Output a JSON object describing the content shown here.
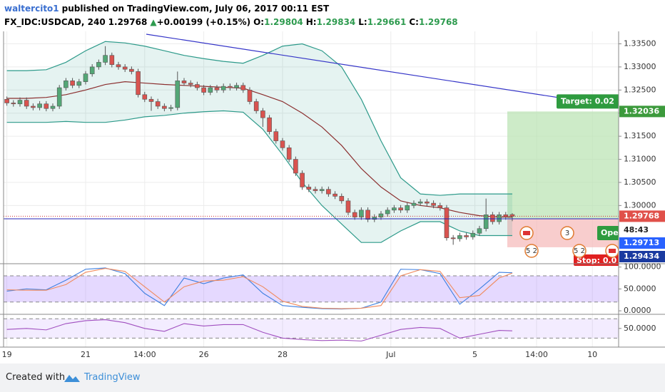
{
  "header": {
    "user": "waltercito1",
    "published": "published on TradingView.com, July 06, 2017 00:11 EST",
    "symbol": "FX_IDC:USDCAD, 240",
    "last": "1.29768",
    "arrow": "▲",
    "change": "+0.00199 (+0.15%)",
    "o_label": "O:",
    "o": "1.29804",
    "h_label": "H:",
    "h": "1.29834",
    "l_label": "L:",
    "l": "1.29661",
    "c_label": "C:",
    "c": "1.29768"
  },
  "chart_data": [
    {
      "type": "candlestick",
      "xlim": [
        -0.5,
        93.2
      ],
      "xticks": [
        {
          "value": 0,
          "label": "19"
        },
        {
          "value": 12,
          "label": "21"
        },
        {
          "value": 21,
          "label": "14:00"
        },
        {
          "value": 30,
          "label": "26"
        },
        {
          "value": 42,
          "label": "28"
        },
        {
          "value": 58.5,
          "label": "Jul"
        },
        {
          "value": 71.3,
          "label": "5"
        },
        {
          "value": 80.7,
          "label": "14:00"
        },
        {
          "value": 89.2,
          "label": "10"
        }
      ],
      "ylim": [
        1.2874,
        1.3377
      ],
      "yticks": [
        {
          "value": 1.335,
          "label": "1.33500"
        },
        {
          "value": 1.33,
          "label": "1.33000"
        },
        {
          "value": 1.325,
          "label": "1.32500"
        },
        {
          "value": 1.32,
          "label": "1.32000"
        },
        {
          "value": 1.315,
          "label": "1.31500"
        },
        {
          "value": 1.31,
          "label": "1.31000"
        },
        {
          "value": 1.305,
          "label": "1.30500"
        },
        {
          "value": 1.3,
          "label": "1.30000"
        }
      ],
      "grid": true,
      "up_color": "#53a776",
      "down_color": "#d9534f",
      "open": [
        1.323,
        1.3222,
        1.322,
        1.3228,
        1.3215,
        1.3212,
        1.322,
        1.321,
        1.3215,
        1.3255,
        1.327,
        1.326,
        1.3268,
        1.3285,
        1.33,
        1.331,
        1.3325,
        1.3305,
        1.33,
        1.3295,
        1.329,
        1.324,
        1.323,
        1.3225,
        1.3215,
        1.321,
        1.3212,
        1.327,
        1.3265,
        1.3262,
        1.3255,
        1.3245,
        1.3255,
        1.325,
        1.3258,
        1.3255,
        1.326,
        1.325,
        1.3225,
        1.3205,
        1.319,
        1.316,
        1.314,
        1.3125,
        1.31,
        1.307,
        1.304,
        1.3035,
        1.3032,
        1.3035,
        1.3025,
        1.302,
        1.301,
        1.2985,
        1.2975,
        1.299,
        1.297,
        1.2975,
        1.2982,
        1.299,
        1.2995,
        1.299,
        1.3,
        1.3005,
        1.3008,
        1.3005,
        1.3,
        1.2995,
        1.293,
        1.2928,
        1.2935,
        1.2932,
        1.294,
        1.295,
        1.298,
        1.2965,
        1.298,
        1.29804
      ],
      "high": [
        1.3236,
        1.3228,
        1.3234,
        1.3234,
        1.3221,
        1.3226,
        1.3226,
        1.3221,
        1.3261,
        1.3276,
        1.3276,
        1.3274,
        1.3291,
        1.3306,
        1.3316,
        1.3345,
        1.3331,
        1.3311,
        1.3306,
        1.3301,
        1.3296,
        1.3246,
        1.3236,
        1.3231,
        1.3221,
        1.3218,
        1.329,
        1.3276,
        1.3271,
        1.3268,
        1.3261,
        1.3261,
        1.3261,
        1.3264,
        1.3264,
        1.3266,
        1.3266,
        1.3256,
        1.3231,
        1.3211,
        1.3196,
        1.3166,
        1.3146,
        1.3131,
        1.3106,
        1.3076,
        1.3046,
        1.3041,
        1.3041,
        1.3041,
        1.3031,
        1.3026,
        1.3016,
        1.2991,
        1.2996,
        1.2996,
        1.2981,
        1.2988,
        1.2996,
        1.3001,
        1.3001,
        1.3006,
        1.3011,
        1.3014,
        1.3014,
        1.3011,
        1.3006,
        1.3001,
        1.2936,
        1.2941,
        1.2941,
        1.2946,
        1.2956,
        1.3015,
        1.2986,
        1.2986,
        1.2986,
        1.29834
      ],
      "low": [
        1.3216,
        1.3214,
        1.3214,
        1.3209,
        1.3206,
        1.3206,
        1.3204,
        1.3204,
        1.3209,
        1.3249,
        1.3254,
        1.3254,
        1.3262,
        1.3279,
        1.3294,
        1.3304,
        1.3299,
        1.3294,
        1.3289,
        1.3284,
        1.3234,
        1.3224,
        1.3205,
        1.3209,
        1.3204,
        1.3204,
        1.3206,
        1.3259,
        1.3256,
        1.3249,
        1.3239,
        1.3239,
        1.3244,
        1.3244,
        1.3249,
        1.3249,
        1.3244,
        1.3219,
        1.3199,
        1.317,
        1.3154,
        1.3134,
        1.3119,
        1.3094,
        1.3064,
        1.3034,
        1.3029,
        1.3026,
        1.3026,
        1.3019,
        1.3014,
        1.3004,
        1.2979,
        1.2969,
        1.2969,
        1.2964,
        1.2964,
        1.2969,
        1.2976,
        1.2984,
        1.2984,
        1.2984,
        1.2994,
        1.2999,
        1.2999,
        1.2994,
        1.2989,
        1.2924,
        1.2915,
        1.2922,
        1.2926,
        1.2926,
        1.2934,
        1.2944,
        1.2959,
        1.2959,
        1.2969,
        1.29661
      ],
      "close": [
        1.3222,
        1.322,
        1.3228,
        1.3215,
        1.3212,
        1.322,
        1.321,
        1.3215,
        1.3255,
        1.327,
        1.326,
        1.3268,
        1.3285,
        1.33,
        1.331,
        1.3325,
        1.3305,
        1.33,
        1.3295,
        1.329,
        1.324,
        1.323,
        1.3225,
        1.3215,
        1.321,
        1.3212,
        1.327,
        1.3265,
        1.3262,
        1.3255,
        1.3245,
        1.3255,
        1.325,
        1.3258,
        1.3255,
        1.326,
        1.325,
        1.3225,
        1.3205,
        1.319,
        1.316,
        1.314,
        1.3125,
        1.31,
        1.307,
        1.304,
        1.3035,
        1.3032,
        1.3035,
        1.3025,
        1.302,
        1.301,
        1.2985,
        1.2975,
        1.299,
        1.297,
        1.2975,
        1.2982,
        1.299,
        1.2995,
        1.299,
        1.3,
        1.3005,
        1.3008,
        1.3005,
        1.3,
        1.2995,
        1.293,
        1.2928,
        1.2935,
        1.2932,
        1.294,
        1.295,
        1.298,
        1.2965,
        1.298,
        1.2975,
        1.29768
      ],
      "bands": {
        "x": [
          0,
          3,
          6,
          9,
          12,
          15,
          18,
          21,
          24,
          27,
          30,
          33,
          36,
          39,
          42,
          45,
          48,
          51,
          54,
          57,
          60,
          63,
          66,
          69,
          72,
          75,
          77
        ],
        "upper": [
          1.3292,
          1.3292,
          1.3294,
          1.331,
          1.3335,
          1.3355,
          1.3352,
          1.3345,
          1.3335,
          1.3325,
          1.3318,
          1.3312,
          1.3308,
          1.3325,
          1.3345,
          1.335,
          1.3335,
          1.33,
          1.323,
          1.314,
          1.306,
          1.3025,
          1.3022,
          1.3025,
          1.3025,
          1.3025,
          1.3025
        ],
        "middle": [
          1.3232,
          1.3232,
          1.3234,
          1.324,
          1.325,
          1.3262,
          1.3268,
          1.3265,
          1.3262,
          1.326,
          1.3258,
          1.3256,
          1.3254,
          1.324,
          1.3225,
          1.32,
          1.317,
          1.313,
          1.308,
          1.304,
          1.301,
          1.3,
          1.2995,
          1.2985,
          1.2978,
          1.2975,
          1.2975
        ],
        "lower": [
          1.318,
          1.318,
          1.318,
          1.3182,
          1.318,
          1.318,
          1.3185,
          1.3192,
          1.3195,
          1.32,
          1.3203,
          1.3205,
          1.3202,
          1.3165,
          1.311,
          1.305,
          1.3,
          1.296,
          1.292,
          1.292,
          1.2945,
          1.2965,
          1.2965,
          1.2945,
          1.2935,
          1.2935,
          1.2935
        ],
        "band_color": "#2d9a8a",
        "middle_color": "#8b2e2e"
      }
    },
    {
      "type": "line",
      "ylim": [
        -8,
        106
      ],
      "yticks": [
        {
          "value": 100,
          "label": "100.0000"
        },
        {
          "value": 50,
          "label": "50.0000"
        },
        {
          "value": 0,
          "label": "0.0000"
        }
      ],
      "levels": [
        80,
        20
      ],
      "x": [
        0,
        3,
        6,
        9,
        12,
        15,
        18,
        21,
        24,
        27,
        30,
        33,
        36,
        39,
        42,
        45,
        48,
        51,
        54,
        57,
        60,
        63,
        66,
        69,
        72,
        75,
        77
      ],
      "series": [
        {
          "color": "#3d7fe0",
          "values": [
            45,
            50,
            48,
            70,
            95,
            98,
            85,
            40,
            12,
            75,
            62,
            75,
            82,
            40,
            12,
            8,
            5,
            4,
            6,
            20,
            95,
            94,
            85,
            15,
            50,
            88,
            87
          ]
        },
        {
          "color": "#f08a5d",
          "values": [
            48,
            47,
            47,
            60,
            88,
            97,
            90,
            55,
            20,
            55,
            68,
            70,
            78,
            55,
            22,
            10,
            6,
            5,
            6,
            12,
            80,
            94,
            90,
            30,
            35,
            75,
            86
          ]
        }
      ]
    },
    {
      "type": "line",
      "ylim": [
        11.5,
        77.7
      ],
      "yticks": [
        {
          "value": 50,
          "label": "50.0000"
        }
      ],
      "levels": [
        70,
        30
      ],
      "x": [
        0,
        3,
        6,
        9,
        12,
        15,
        18,
        21,
        24,
        27,
        30,
        33,
        36,
        39,
        42,
        45,
        48,
        51,
        54,
        57,
        60,
        63,
        66,
        69,
        72,
        75,
        77
      ],
      "series": [
        {
          "color": "#a04fbf",
          "values": [
            48,
            50,
            47,
            60,
            66,
            68,
            62,
            50,
            44,
            60,
            55,
            58,
            58,
            42,
            30,
            27,
            25,
            26,
            24,
            36,
            48,
            52,
            50,
            30,
            38,
            46,
            45
          ]
        }
      ]
    }
  ],
  "position": {
    "target_text": "Target: 0.02",
    "target_price": 1.32036,
    "target_label": "1.32036",
    "entry_price": 1.29713,
    "entry_label": "1.29713",
    "stop_price": 1.29434,
    "stop_label": "1.29434",
    "open_text": "Open",
    "stop_text": "Stop: 0.0",
    "last_price": 1.29768,
    "last_label": "1.29768",
    "countdown": "48:43"
  },
  "events": [
    "3",
    "5 2",
    "5 2"
  ],
  "footer": {
    "created": "Created with",
    "brand": "TradingView"
  }
}
